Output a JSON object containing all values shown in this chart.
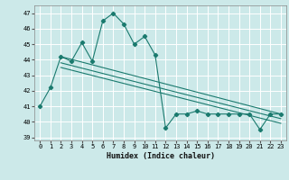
{
  "xlabel": "Humidex (Indice chaleur)",
  "ylabel": "",
  "xlim": [
    -0.5,
    23.5
  ],
  "ylim": [
    38.8,
    47.5
  ],
  "yticks": [
    39,
    40,
    41,
    42,
    43,
    44,
    45,
    46,
    47
  ],
  "xticks": [
    0,
    1,
    2,
    3,
    4,
    5,
    6,
    7,
    8,
    9,
    10,
    11,
    12,
    13,
    14,
    15,
    16,
    17,
    18,
    19,
    20,
    21,
    22,
    23
  ],
  "bg_color": "#cce9e9",
  "grid_color": "#ffffff",
  "line_color": "#1a7a6e",
  "line1_x": [
    0,
    1,
    2,
    3,
    4,
    5,
    6,
    7,
    8,
    9,
    10,
    11,
    12,
    13,
    14,
    15,
    16,
    17,
    18,
    19,
    20,
    21,
    22,
    23
  ],
  "line1_y": [
    41.0,
    42.2,
    44.2,
    43.9,
    45.1,
    43.9,
    46.5,
    47.0,
    46.3,
    45.0,
    45.5,
    44.3,
    39.6,
    40.5,
    40.5,
    40.7,
    40.5,
    40.5,
    40.5,
    40.5,
    40.5,
    39.5,
    40.5,
    40.5
  ],
  "line2_x": [
    2,
    23
  ],
  "line2_y": [
    44.2,
    40.5
  ],
  "line3_x": [
    2,
    23
  ],
  "line3_y": [
    43.8,
    40.2
  ],
  "line4_x": [
    2,
    23
  ],
  "line4_y": [
    43.5,
    39.9
  ]
}
